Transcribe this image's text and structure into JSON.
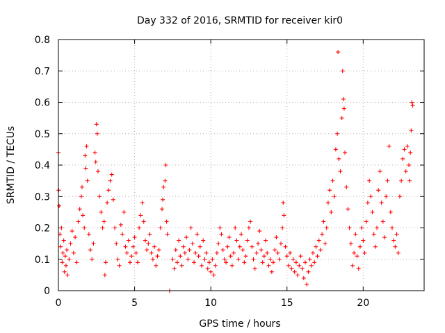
{
  "chart_data": {
    "type": "scatter",
    "title": "Day 332 of 2016, SRMTID for receiver kir0",
    "xlabel": "GPS time / hours",
    "ylabel": "SRMTID / TECUs",
    "xlim": [
      0,
      24
    ],
    "ylim": [
      0,
      0.8
    ],
    "xticks": [
      0,
      5,
      10,
      15,
      20
    ],
    "yticks": [
      0,
      0.1,
      0.2,
      0.3,
      0.4,
      0.5,
      0.6,
      0.7,
      0.8
    ],
    "xtick_labels": [
      "0",
      "5",
      "10",
      "15",
      "20"
    ],
    "ytick_labels": [
      "0",
      "0.1",
      "0.2",
      "0.3",
      "0.4",
      "0.5",
      "0.6",
      "0.7",
      "0.8"
    ],
    "grid": true,
    "marker": "plus",
    "color": "#ff0000",
    "series": [
      {
        "name": "SRMTID",
        "marker": "plus",
        "points": [
          [
            0.0,
            0.44
          ],
          [
            0.02,
            0.32
          ],
          [
            0.05,
            0.27
          ],
          [
            0.1,
            0.18
          ],
          [
            0.15,
            0.14
          ],
          [
            0.2,
            0.2
          ],
          [
            0.25,
            0.09
          ],
          [
            0.3,
            0.12
          ],
          [
            0.35,
            0.16
          ],
          [
            0.4,
            0.06
          ],
          [
            0.45,
            0.11
          ],
          [
            0.5,
            0.08
          ],
          [
            0.55,
            0.13
          ],
          [
            0.6,
            0.05
          ],
          [
            0.7,
            0.1
          ],
          [
            0.8,
            0.15
          ],
          [
            0.9,
            0.19
          ],
          [
            1.0,
            0.12
          ],
          [
            1.1,
            0.17
          ],
          [
            1.2,
            0.09
          ],
          [
            1.3,
            0.22
          ],
          [
            1.4,
            0.26
          ],
          [
            1.5,
            0.3
          ],
          [
            1.55,
            0.33
          ],
          [
            1.6,
            0.24
          ],
          [
            1.7,
            0.2
          ],
          [
            1.75,
            0.43
          ],
          [
            1.8,
            0.39
          ],
          [
            1.85,
            0.46
          ],
          [
            1.9,
            0.35
          ],
          [
            2.0,
            0.18
          ],
          [
            2.1,
            0.13
          ],
          [
            2.2,
            0.1
          ],
          [
            2.3,
            0.15
          ],
          [
            2.4,
            0.44
          ],
          [
            2.45,
            0.41
          ],
          [
            2.5,
            0.53
          ],
          [
            2.55,
            0.5
          ],
          [
            2.6,
            0.38
          ],
          [
            2.7,
            0.3
          ],
          [
            2.8,
            0.25
          ],
          [
            2.9,
            0.2
          ],
          [
            3.0,
            0.22
          ],
          [
            3.05,
            0.05
          ],
          [
            3.1,
            0.09
          ],
          [
            3.2,
            0.28
          ],
          [
            3.3,
            0.32
          ],
          [
            3.4,
            0.35
          ],
          [
            3.5,
            0.37
          ],
          [
            3.6,
            0.29
          ],
          [
            3.7,
            0.2
          ],
          [
            3.8,
            0.15
          ],
          [
            3.9,
            0.1
          ],
          [
            4.0,
            0.08
          ],
          [
            4.1,
            0.21
          ],
          [
            4.2,
            0.18
          ],
          [
            4.3,
            0.25
          ],
          [
            4.4,
            0.14
          ],
          [
            4.5,
            0.12
          ],
          [
            4.6,
            0.16
          ],
          [
            4.7,
            0.09
          ],
          [
            4.8,
            0.11
          ],
          [
            4.9,
            0.14
          ],
          [
            5.0,
            0.17
          ],
          [
            5.1,
            0.12
          ],
          [
            5.2,
            0.09
          ],
          [
            5.3,
            0.2
          ],
          [
            5.4,
            0.24
          ],
          [
            5.5,
            0.28
          ],
          [
            5.6,
            0.22
          ],
          [
            5.7,
            0.16
          ],
          [
            5.8,
            0.13
          ],
          [
            5.9,
            0.15
          ],
          [
            6.0,
            0.18
          ],
          [
            6.1,
            0.12
          ],
          [
            6.2,
            0.1
          ],
          [
            6.3,
            0.14
          ],
          [
            6.4,
            0.08
          ],
          [
            6.5,
            0.11
          ],
          [
            6.6,
            0.13
          ],
          [
            6.7,
            0.2
          ],
          [
            6.8,
            0.26
          ],
          [
            6.85,
            0.29
          ],
          [
            6.9,
            0.33
          ],
          [
            7.0,
            0.35
          ],
          [
            7.05,
            0.4
          ],
          [
            7.1,
            0.22
          ],
          [
            7.15,
            0.18
          ],
          [
            7.3,
            0.0
          ],
          [
            7.5,
            0.1
          ],
          [
            7.6,
            0.07
          ],
          [
            7.7,
            0.13
          ],
          [
            7.8,
            0.09
          ],
          [
            7.9,
            0.16
          ],
          [
            8.0,
            0.11
          ],
          [
            8.1,
            0.08
          ],
          [
            8.2,
            0.14
          ],
          [
            8.3,
            0.12
          ],
          [
            8.4,
            0.17
          ],
          [
            8.5,
            0.1
          ],
          [
            8.6,
            0.13
          ],
          [
            8.7,
            0.2
          ],
          [
            8.8,
            0.15
          ],
          [
            8.9,
            0.09
          ],
          [
            9.0,
            0.12
          ],
          [
            9.1,
            0.18
          ],
          [
            9.2,
            0.11
          ],
          [
            9.3,
            0.14
          ],
          [
            9.4,
            0.08
          ],
          [
            9.5,
            0.16
          ],
          [
            9.6,
            0.1
          ],
          [
            9.7,
            0.12
          ],
          [
            9.8,
            0.07
          ],
          [
            9.9,
            0.09
          ],
          [
            10.0,
            0.06
          ],
          [
            10.1,
            0.1
          ],
          [
            10.2,
            0.05
          ],
          [
            10.3,
            0.08
          ],
          [
            10.4,
            0.12
          ],
          [
            10.5,
            0.15
          ],
          [
            10.6,
            0.2
          ],
          [
            10.7,
            0.18
          ],
          [
            10.8,
            0.13
          ],
          [
            10.9,
            0.1
          ],
          [
            11.0,
            0.09
          ],
          [
            11.1,
            0.14
          ],
          [
            11.2,
            0.17
          ],
          [
            11.3,
            0.11
          ],
          [
            11.4,
            0.08
          ],
          [
            11.5,
            0.12
          ],
          [
            11.6,
            0.2
          ],
          [
            11.7,
            0.16
          ],
          [
            11.8,
            0.1
          ],
          [
            11.9,
            0.14
          ],
          [
            12.0,
            0.18
          ],
          [
            12.1,
            0.13
          ],
          [
            12.2,
            0.09
          ],
          [
            12.3,
            0.11
          ],
          [
            12.4,
            0.16
          ],
          [
            12.5,
            0.2
          ],
          [
            12.6,
            0.22
          ],
          [
            12.7,
            0.14
          ],
          [
            12.8,
            0.1
          ],
          [
            12.9,
            0.07
          ],
          [
            13.0,
            0.12
          ],
          [
            13.1,
            0.15
          ],
          [
            13.2,
            0.19
          ],
          [
            13.3,
            0.13
          ],
          [
            13.4,
            0.09
          ],
          [
            13.5,
            0.11
          ],
          [
            13.6,
            0.16
          ],
          [
            13.7,
            0.12
          ],
          [
            13.8,
            0.08
          ],
          [
            13.9,
            0.1
          ],
          [
            14.0,
            0.06
          ],
          [
            14.1,
            0.09
          ],
          [
            14.2,
            0.13
          ],
          [
            14.3,
            0.17
          ],
          [
            14.4,
            0.12
          ],
          [
            14.5,
            0.1
          ],
          [
            14.6,
            0.15
          ],
          [
            14.7,
            0.2
          ],
          [
            14.75,
            0.28
          ],
          [
            14.8,
            0.24
          ],
          [
            14.9,
            0.14
          ],
          [
            15.0,
            0.11
          ],
          [
            15.1,
            0.08
          ],
          [
            15.2,
            0.12
          ],
          [
            15.3,
            0.07
          ],
          [
            15.4,
            0.1
          ],
          [
            15.5,
            0.06
          ],
          [
            15.6,
            0.09
          ],
          [
            15.7,
            0.05
          ],
          [
            15.8,
            0.08
          ],
          [
            15.9,
            0.11
          ],
          [
            16.0,
            0.07
          ],
          [
            16.1,
            0.04
          ],
          [
            16.2,
            0.09
          ],
          [
            16.3,
            0.02
          ],
          [
            16.4,
            0.06
          ],
          [
            16.5,
            0.1
          ],
          [
            16.6,
            0.08
          ],
          [
            16.7,
            0.12
          ],
          [
            16.8,
            0.09
          ],
          [
            16.9,
            0.14
          ],
          [
            17.0,
            0.11
          ],
          [
            17.1,
            0.16
          ],
          [
            17.2,
            0.13
          ],
          [
            17.3,
            0.18
          ],
          [
            17.4,
            0.22
          ],
          [
            17.5,
            0.15
          ],
          [
            17.6,
            0.2
          ],
          [
            17.7,
            0.28
          ],
          [
            17.8,
            0.32
          ],
          [
            17.9,
            0.25
          ],
          [
            18.0,
            0.35
          ],
          [
            18.1,
            0.3
          ],
          [
            18.2,
            0.45
          ],
          [
            18.3,
            0.5
          ],
          [
            18.35,
            0.76
          ],
          [
            18.4,
            0.42
          ],
          [
            18.5,
            0.38
          ],
          [
            18.6,
            0.55
          ],
          [
            18.65,
            0.7
          ],
          [
            18.7,
            0.61
          ],
          [
            18.75,
            0.58
          ],
          [
            18.8,
            0.44
          ],
          [
            18.9,
            0.33
          ],
          [
            19.0,
            0.26
          ],
          [
            19.1,
            0.2
          ],
          [
            19.2,
            0.15
          ],
          [
            19.3,
            0.08
          ],
          [
            19.4,
            0.12
          ],
          [
            19.5,
            0.18
          ],
          [
            19.6,
            0.11
          ],
          [
            19.7,
            0.07
          ],
          [
            19.8,
            0.14
          ],
          [
            19.9,
            0.2
          ],
          [
            20.0,
            0.16
          ],
          [
            20.1,
            0.12
          ],
          [
            20.2,
            0.22
          ],
          [
            20.3,
            0.28
          ],
          [
            20.4,
            0.35
          ],
          [
            20.5,
            0.3
          ],
          [
            20.6,
            0.25
          ],
          [
            20.7,
            0.18
          ],
          [
            20.8,
            0.14
          ],
          [
            20.9,
            0.2
          ],
          [
            21.0,
            0.32
          ],
          [
            21.1,
            0.38
          ],
          [
            21.2,
            0.28
          ],
          [
            21.3,
            0.22
          ],
          [
            21.4,
            0.17
          ],
          [
            21.5,
            0.3
          ],
          [
            21.6,
            0.35
          ],
          [
            21.7,
            0.46
          ],
          [
            21.8,
            0.25
          ],
          [
            21.9,
            0.2
          ],
          [
            22.0,
            0.16
          ],
          [
            22.1,
            0.14
          ],
          [
            22.2,
            0.18
          ],
          [
            22.3,
            0.12
          ],
          [
            22.4,
            0.3
          ],
          [
            22.5,
            0.35
          ],
          [
            22.6,
            0.42
          ],
          [
            22.7,
            0.45
          ],
          [
            22.8,
            0.38
          ],
          [
            22.9,
            0.46
          ],
          [
            23.0,
            0.4
          ],
          [
            23.05,
            0.35
          ],
          [
            23.1,
            0.44
          ],
          [
            23.15,
            0.51
          ],
          [
            23.2,
            0.6
          ],
          [
            23.25,
            0.59
          ]
        ]
      }
    ]
  }
}
